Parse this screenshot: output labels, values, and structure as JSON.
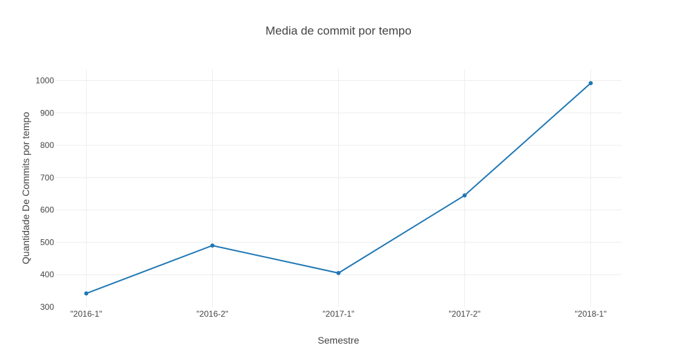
{
  "chart_data": {
    "type": "line",
    "title": "Media de commit por tempo",
    "xlabel": "Semestre",
    "ylabel": "Quantidade De Commits por tempo",
    "categories": [
      "\"2016-1\"",
      "\"2016-2\"",
      "\"2017-1\"",
      "\"2017-2\"",
      "\"2018-1\""
    ],
    "values": [
      342,
      490,
      405,
      645,
      992
    ],
    "ylim": [
      300,
      1035
    ],
    "yticks": [
      300,
      400,
      500,
      600,
      700,
      800,
      900,
      1000
    ],
    "grid": true,
    "line_color": "#1f77b4",
    "grid_color": "#eeeeee"
  }
}
